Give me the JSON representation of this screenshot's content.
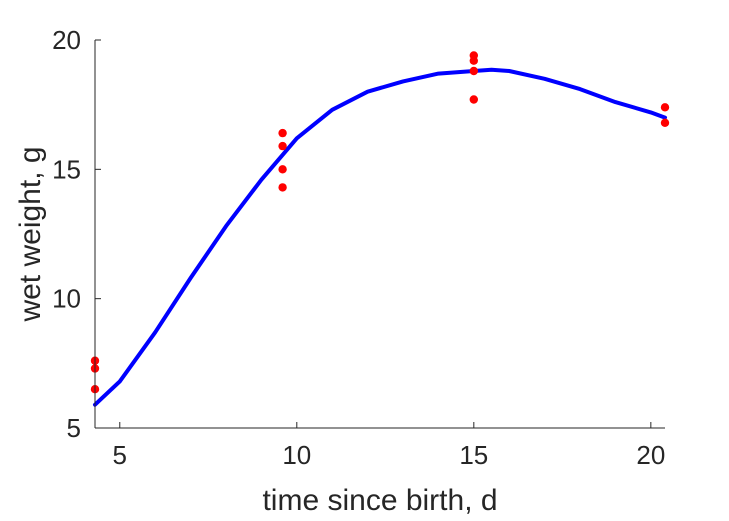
{
  "chart_data": {
    "type": "scatter",
    "xlabel": "time since birth, d",
    "ylabel": "wet weight, g",
    "xlim": [
      4.3,
      20.4
    ],
    "ylim": [
      5,
      20
    ],
    "xticks": [
      5,
      10,
      15,
      20
    ],
    "yticks": [
      5,
      10,
      15,
      20
    ],
    "grid": false,
    "series": [
      {
        "kind": "points",
        "color": "#ff0000",
        "x": [
          4.3,
          4.3,
          4.3,
          9.6,
          9.6,
          9.6,
          9.6,
          15.0,
          15.0,
          15.0,
          15.0,
          20.4,
          20.4
        ],
        "y": [
          7.6,
          7.3,
          6.5,
          16.4,
          15.9,
          15.0,
          14.3,
          19.4,
          19.2,
          18.8,
          17.7,
          17.4,
          16.8
        ]
      },
      {
        "kind": "curve",
        "color": "#0000ff",
        "x": [
          4.3,
          5.0,
          6.0,
          7.0,
          8.0,
          9.0,
          10.0,
          11.0,
          12.0,
          13.0,
          14.0,
          15.0,
          15.5,
          16.0,
          17.0,
          18.0,
          19.0,
          20.0,
          20.4
        ],
        "y": [
          5.9,
          6.8,
          8.7,
          10.8,
          12.8,
          14.6,
          16.2,
          17.3,
          18.0,
          18.4,
          18.7,
          18.8,
          18.85,
          18.8,
          18.5,
          18.1,
          17.6,
          17.2,
          17.0
        ]
      }
    ]
  }
}
